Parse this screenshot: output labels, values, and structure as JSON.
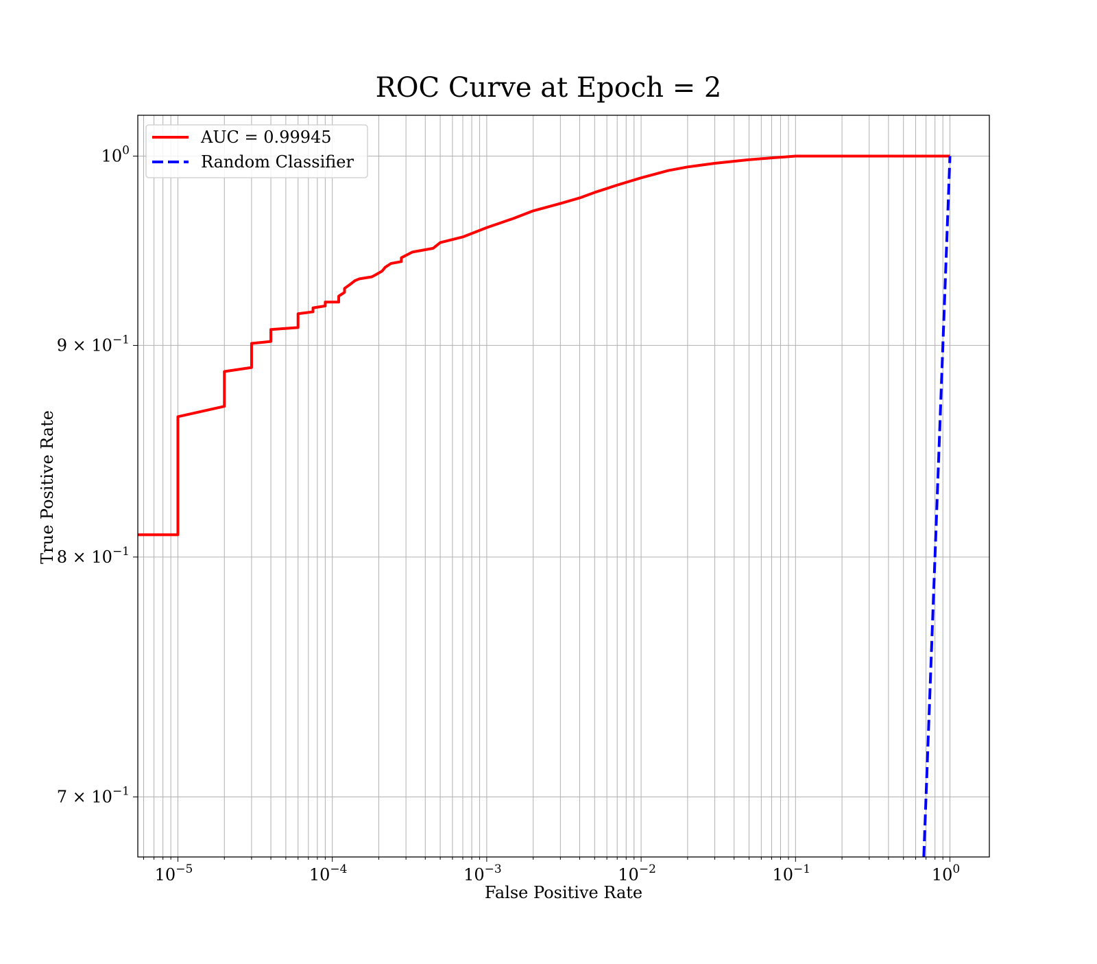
{
  "chart_data": {
    "type": "line",
    "title": "ROC Curve at Epoch = 2",
    "xlabel": "False Positive Rate",
    "ylabel": "True Positive Rate",
    "xscale": "log",
    "yscale": "log",
    "xlim": [
      5.5e-06,
      1.8
    ],
    "ylim": [
      0.677,
      1.023
    ],
    "grid": "on (major and minor)",
    "legend_position": "top-left",
    "x_ticks": [
      {
        "value": 1e-05,
        "base": "10",
        "exp": "−5"
      },
      {
        "value": 0.0001,
        "base": "10",
        "exp": "−4"
      },
      {
        "value": 0.001,
        "base": "10",
        "exp": "−3"
      },
      {
        "value": 0.01,
        "base": "10",
        "exp": "−2"
      },
      {
        "value": 0.1,
        "base": "10",
        "exp": "−1"
      },
      {
        "value": 1,
        "base": "10",
        "exp": "0"
      }
    ],
    "y_ticks": [
      {
        "value": 1.0,
        "mant": "",
        "base": "10",
        "exp": "0"
      },
      {
        "value": 0.9,
        "mant": "9 × ",
        "base": "10",
        "exp": "−1"
      },
      {
        "value": 0.8,
        "mant": "8 × ",
        "base": "10",
        "exp": "−1"
      },
      {
        "value": 0.7,
        "mant": "7 × ",
        "base": "10",
        "exp": "−1"
      }
    ],
    "series": [
      {
        "name": "AUC = 0.99945",
        "color": "#ff0000",
        "style": "solid",
        "x": [
          5.5e-06,
          1e-05,
          1e-05,
          2e-05,
          2e-05,
          3e-05,
          3e-05,
          4e-05,
          4e-05,
          6e-05,
          6e-05,
          7.5e-05,
          7.5e-05,
          9e-05,
          9e-05,
          0.00011,
          0.00011,
          0.00012,
          0.00012,
          0.00013,
          0.00014,
          0.00015,
          0.00018,
          0.00019,
          0.00021,
          0.00022,
          0.00024,
          0.00028,
          0.00028,
          0.00033,
          0.00045,
          0.0005,
          0.0007,
          0.001,
          0.0015,
          0.002,
          0.003,
          0.004,
          0.005,
          0.007,
          0.01,
          0.015,
          0.02,
          0.03,
          0.05,
          0.07,
          0.1,
          0.15,
          0.2,
          1.0
        ],
        "y": [
          0.81,
          0.81,
          0.865,
          0.87,
          0.887,
          0.889,
          0.901,
          0.902,
          0.908,
          0.909,
          0.916,
          0.917,
          0.919,
          0.92,
          0.922,
          0.922,
          0.925,
          0.927,
          0.929,
          0.931,
          0.933,
          0.934,
          0.935,
          0.936,
          0.938,
          0.94,
          0.942,
          0.943,
          0.945,
          0.948,
          0.95,
          0.953,
          0.956,
          0.961,
          0.966,
          0.97,
          0.974,
          0.977,
          0.98,
          0.984,
          0.988,
          0.992,
          0.994,
          0.996,
          0.998,
          0.999,
          1.0,
          1.0,
          1.0,
          1.0
        ]
      },
      {
        "name": "Random Classifier",
        "color": "#0000ff",
        "style": "dashed",
        "x": [
          0.677,
          1.0
        ],
        "y": [
          0.677,
          1.0
        ]
      }
    ]
  }
}
